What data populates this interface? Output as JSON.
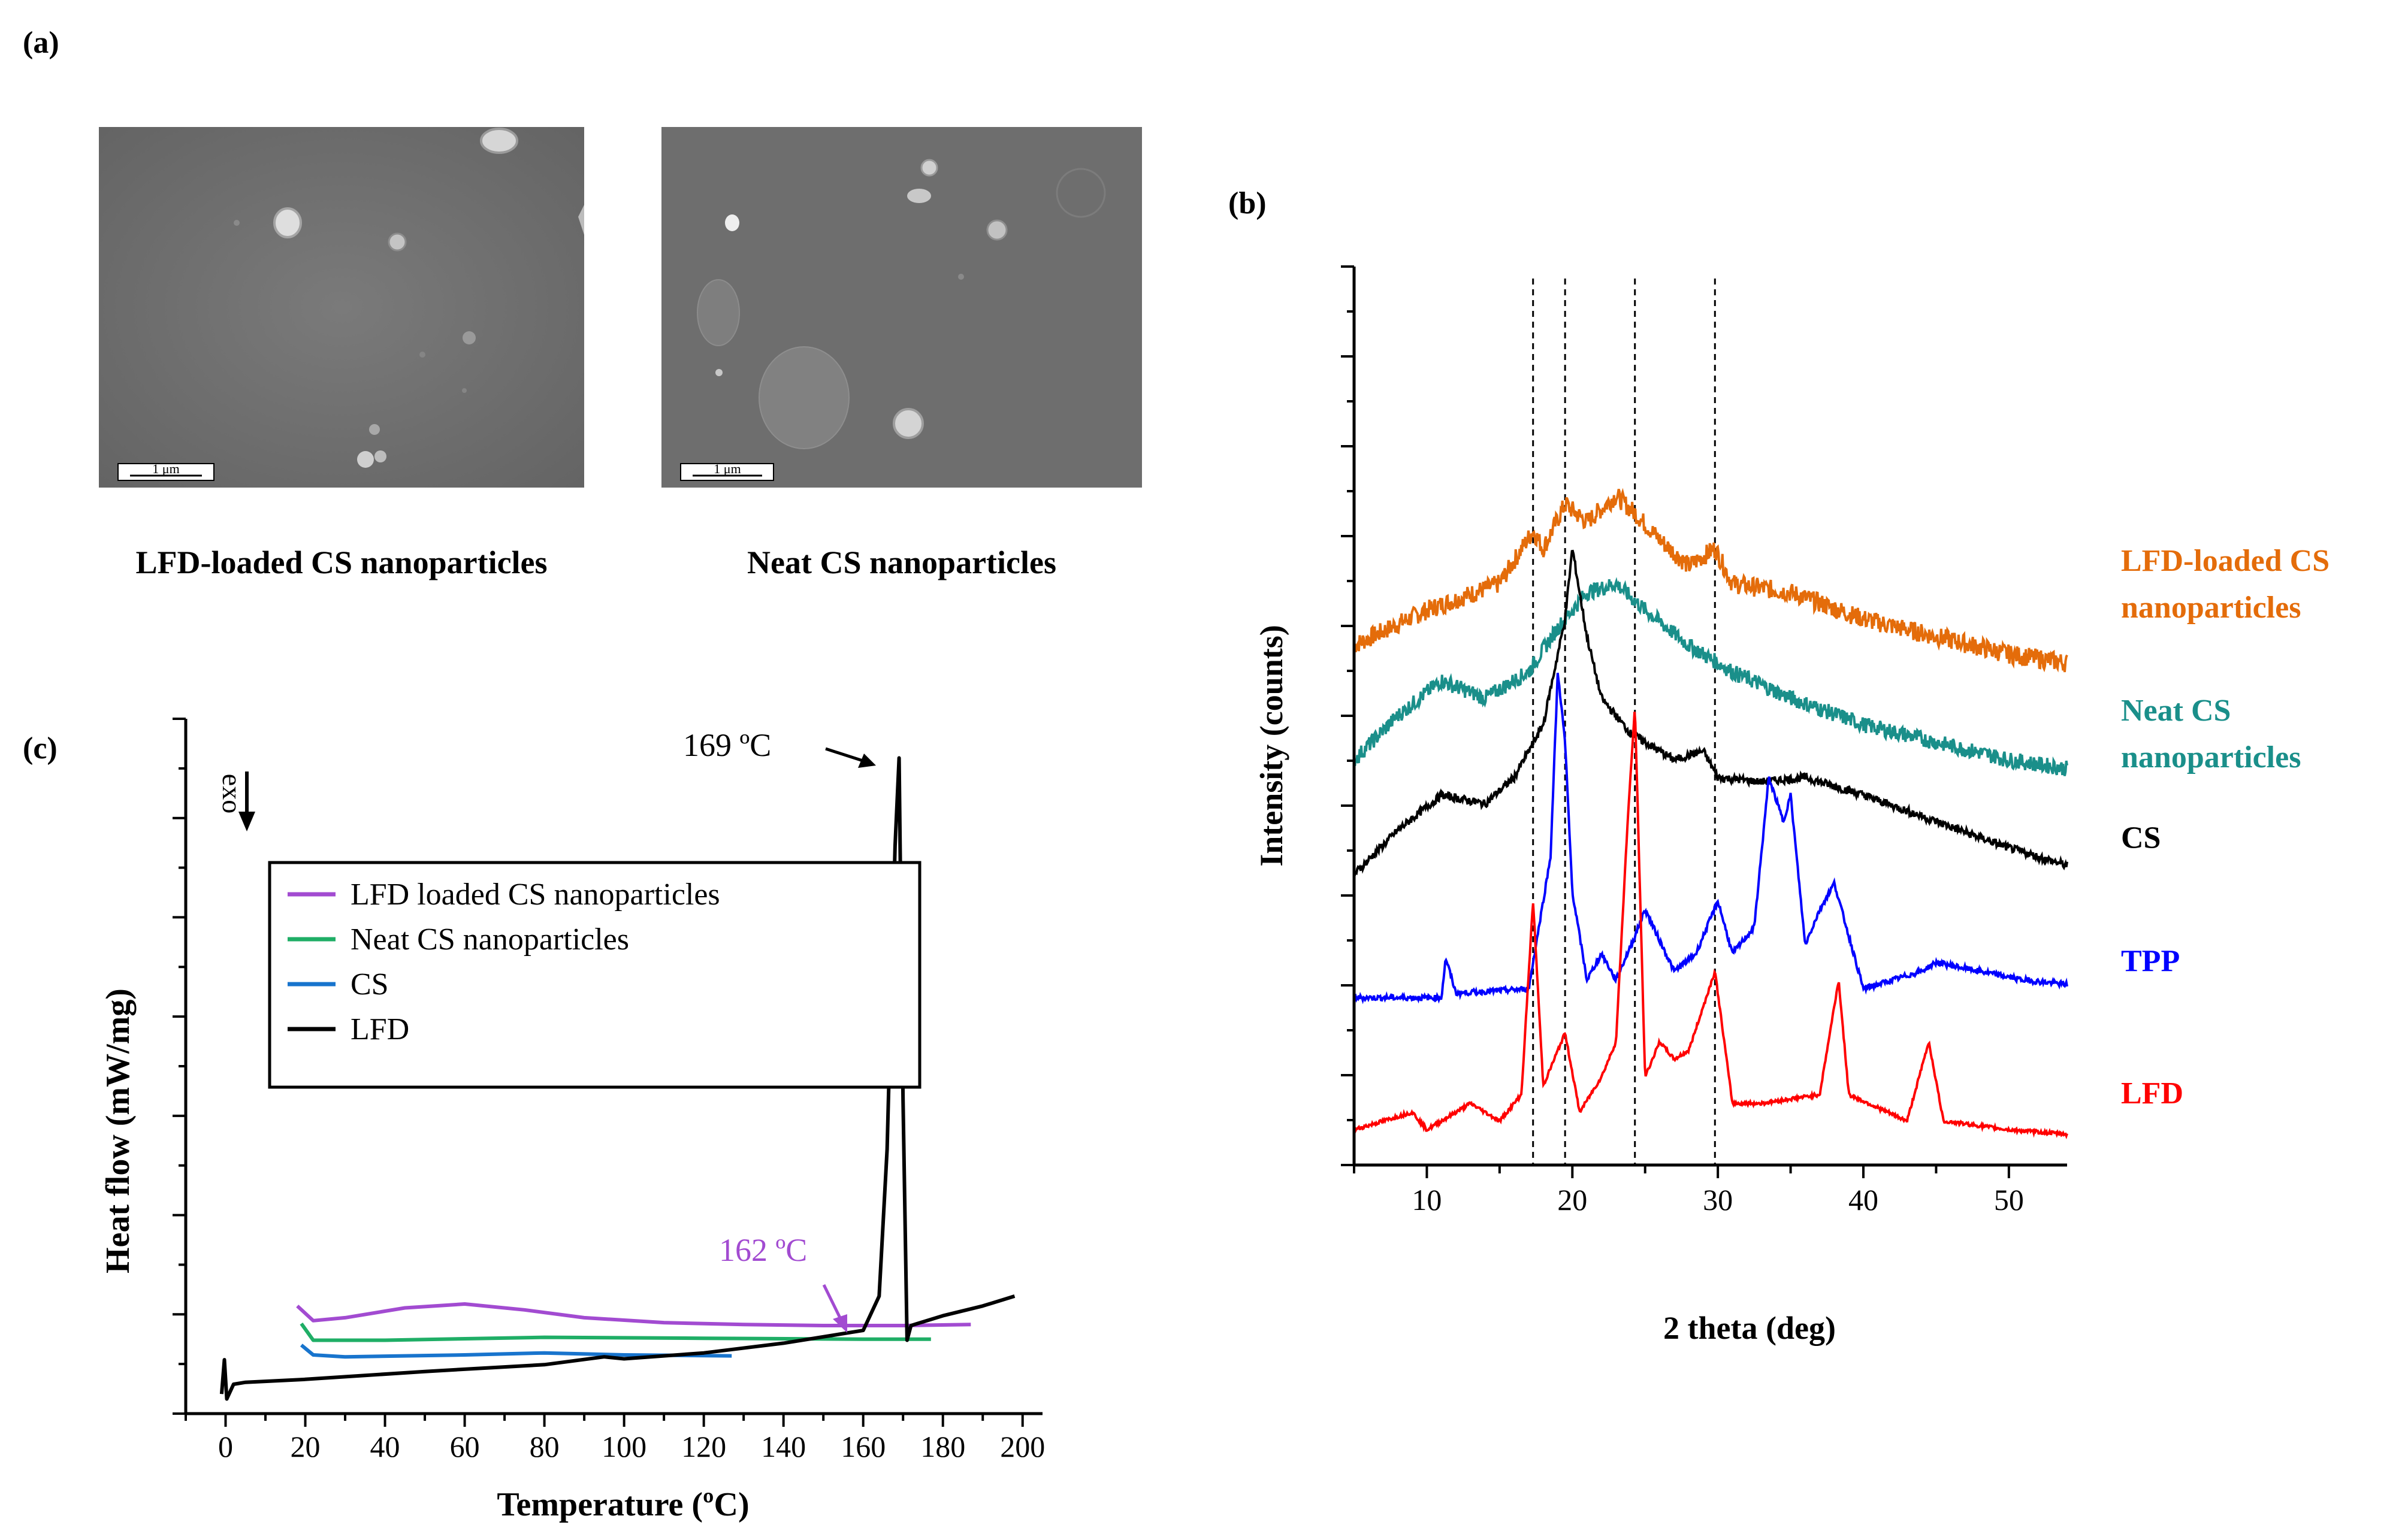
{
  "panel_labels": {
    "a": "(a)",
    "b": "(b)",
    "c": "(c)"
  },
  "sem": {
    "images": [
      {
        "caption": "LFD-loaded CS nanoparticles",
        "scale_bar": "1 μm"
      },
      {
        "caption": "Neat CS nanoparticles",
        "scale_bar": "1 μm"
      }
    ]
  },
  "chart_data": [
    {
      "panel": "(b)",
      "type": "line",
      "xlabel": "2 theta (deg)",
      "ylabel": "Intensity (counts)",
      "xlim": [
        5,
        54
      ],
      "xticks": [
        "10",
        "20",
        "30",
        "40",
        "50"
      ],
      "y_ticklabels_shown": false,
      "reference_lines_2theta": [
        17.3,
        19.5,
        24.3,
        29.8
      ],
      "series": [
        {
          "name": "LFD-loaded CS nanoparticles",
          "color": "#e46c0a",
          "x": [
            5,
            10,
            15,
            17.3,
            18,
            19.5,
            21,
            23,
            24.3,
            26,
            28,
            29.8,
            31,
            35,
            40,
            45,
            50,
            54
          ],
          "y": [
            5.9,
            6.3,
            6.6,
            7.2,
            7.0,
            7.5,
            7.3,
            7.6,
            7.4,
            7.1,
            6.8,
            7.0,
            6.6,
            6.5,
            6.2,
            6.0,
            5.8,
            5.7
          ]
        },
        {
          "name": "Neat CS nanoparticles",
          "color": "#1a8f8a",
          "x": [
            5,
            8,
            11,
            14,
            17,
            19,
            21,
            23,
            25,
            28,
            31,
            35,
            40,
            45,
            50,
            54
          ],
          "y": [
            4.6,
            5.1,
            5.5,
            5.3,
            5.6,
            6.1,
            6.5,
            6.6,
            6.3,
            5.9,
            5.6,
            5.3,
            5.0,
            4.8,
            4.6,
            4.5
          ]
        },
        {
          "name": "CS",
          "color": "#000000",
          "x": [
            5,
            8,
            11,
            14,
            16,
            18,
            19.5,
            20,
            21,
            22,
            24,
            27,
            29,
            30,
            33,
            36,
            40,
            45,
            50,
            54
          ],
          "y": [
            3.3,
            3.8,
            4.2,
            4.1,
            4.4,
            5.0,
            6.2,
            7.0,
            6.0,
            5.3,
            4.9,
            4.6,
            4.7,
            4.4,
            4.35,
            4.4,
            4.2,
            3.9,
            3.6,
            3.4
          ]
        },
        {
          "name": "TPP",
          "color": "#0000ff",
          "x": [
            5,
            11,
            11.3,
            12,
            17,
            18.5,
            19,
            19.5,
            20,
            21,
            22,
            23,
            24.3,
            25,
            27,
            28.5,
            30,
            31,
            32.5,
            33.5,
            34.5,
            35,
            36,
            37,
            38,
            40,
            44,
            45,
            48,
            51,
            54
          ],
          "y": [
            1.9,
            1.9,
            2.35,
            1.95,
            2.0,
            3.5,
            5.6,
            4.8,
            3.1,
            2.1,
            2.4,
            2.1,
            2.6,
            2.9,
            2.2,
            2.4,
            3.0,
            2.4,
            2.7,
            4.4,
            3.9,
            4.2,
            2.5,
            2.9,
            3.2,
            2.0,
            2.2,
            2.3,
            2.2,
            2.1,
            2.05
          ]
        },
        {
          "name": "LFD",
          "color": "#ff0000",
          "x": [
            5,
            9,
            10,
            13,
            15,
            16.5,
            17.3,
            18,
            19.5,
            20.5,
            22,
            23,
            23.8,
            24.3,
            25,
            26,
            27,
            28,
            29.8,
            31,
            33,
            37,
            38.3,
            39,
            43,
            44.5,
            45.5,
            50,
            54
          ],
          "y": [
            0.4,
            0.6,
            0.4,
            0.7,
            0.5,
            0.8,
            3.0,
            0.9,
            1.5,
            0.6,
            1.0,
            1.4,
            3.9,
            5.2,
            1.0,
            1.4,
            1.2,
            1.3,
            2.2,
            0.7,
            0.7,
            0.8,
            2.1,
            0.8,
            0.5,
            1.4,
            0.5,
            0.4,
            0.35
          ]
        }
      ]
    },
    {
      "panel": "(c)",
      "type": "line",
      "xlabel": "Temperature (ºC)",
      "ylabel": "Heat flow (mW/mg)",
      "xlim": [
        -10,
        205
      ],
      "xticks": [
        "0",
        "20",
        "40",
        "60",
        "80",
        "100",
        "120",
        "140",
        "160",
        "180",
        "200"
      ],
      "y_ticklabels_shown": false,
      "exo_label": "exo",
      "legend_position": "center",
      "annotations": [
        {
          "text": "169 ºC",
          "color": "#000000"
        },
        {
          "text": "162 ºC",
          "color": "#a24bd1"
        }
      ],
      "series": [
        {
          "name": "LFD loaded CS nanoparticles",
          "color": "#a24bd1",
          "x": [
            18,
            22,
            30,
            45,
            60,
            75,
            90,
            110,
            130,
            150,
            170,
            187
          ],
          "y": [
            0.9,
            0.75,
            0.78,
            0.88,
            0.92,
            0.86,
            0.78,
            0.73,
            0.71,
            0.7,
            0.7,
            0.71
          ]
        },
        {
          "name": "Neat CS nanoparticles",
          "color": "#1fae66",
          "x": [
            19,
            22,
            40,
            80,
            120,
            160,
            177
          ],
          "y": [
            0.72,
            0.55,
            0.55,
            0.58,
            0.57,
            0.56,
            0.56
          ]
        },
        {
          "name": "CS",
          "color": "#1874cd",
          "x": [
            19,
            22,
            30,
            60,
            80,
            100,
            127
          ],
          "y": [
            0.5,
            0.4,
            0.38,
            0.4,
            0.42,
            0.4,
            0.39
          ]
        },
        {
          "name": "LFD",
          "color": "#000000",
          "x": [
            -1,
            -0.3,
            0.3,
            2,
            5,
            20,
            50,
            80,
            95,
            100,
            120,
            140,
            160,
            164,
            166,
            168,
            169,
            170,
            171,
            172,
            180,
            190,
            198
          ],
          "y": [
            0.0,
            0.35,
            -0.05,
            0.1,
            0.12,
            0.15,
            0.23,
            0.3,
            0.38,
            0.36,
            0.42,
            0.52,
            0.65,
            1.0,
            2.5,
            5.6,
            6.5,
            3.0,
            0.55,
            0.7,
            0.8,
            0.9,
            1.0
          ]
        }
      ]
    }
  ]
}
